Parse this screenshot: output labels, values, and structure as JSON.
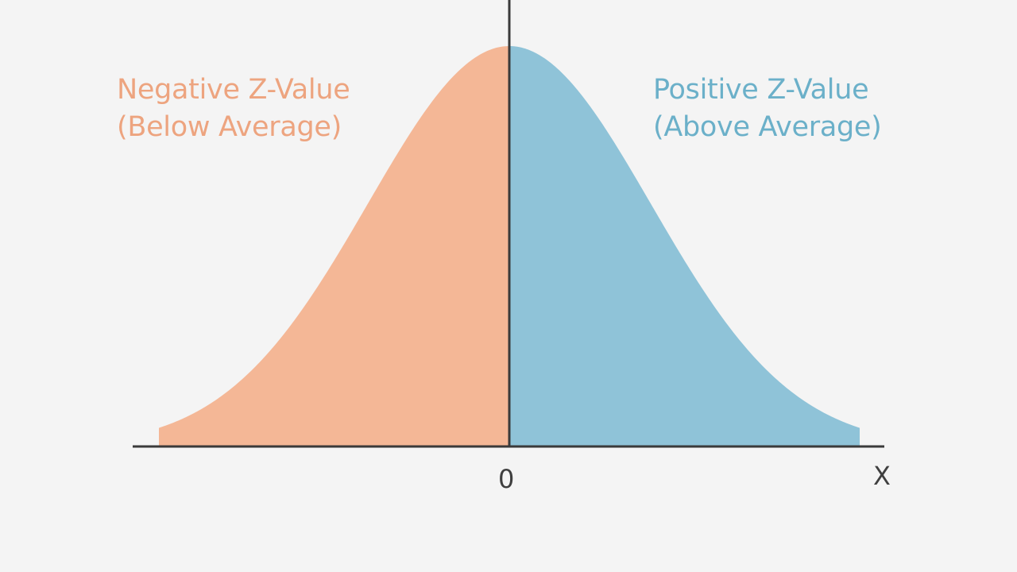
{
  "chart_data": {
    "type": "area",
    "title": "",
    "subtitle": "",
    "xlabel": "X",
    "ylabel": "",
    "x_ticks": [
      "0"
    ],
    "xlim": [
      -2.7,
      2.7
    ],
    "ylim": [
      0,
      1
    ],
    "grid": false,
    "legend": "none",
    "distribution": "standard normal (bell curve)",
    "mean": 0,
    "series": [
      {
        "name": "Negative Z-Value (Below Average)",
        "region": "z < 0",
        "color": "#f4b796",
        "label_color": "#eda47f",
        "x": [
          -2.4,
          -2.0,
          -1.5,
          -1.0,
          -0.5,
          0
        ],
        "y": [
          0.056,
          0.135,
          0.325,
          0.607,
          0.882,
          1.0
        ]
      },
      {
        "name": "Positive Z-Value (Above Average)",
        "region": "z > 0",
        "color": "#8fc3d8",
        "label_color": "#6bb0c9",
        "x": [
          0,
          0.5,
          1.0,
          1.5,
          2.0,
          2.4
        ],
        "y": [
          1.0,
          0.882,
          0.607,
          0.325,
          0.135,
          0.056
        ]
      }
    ],
    "annotations": [
      {
        "text": "Negative Z-Value",
        "line2": "(Below Average)",
        "side": "left"
      },
      {
        "text": "Positive Z-Value",
        "line2": "(Above Average)",
        "side": "right"
      }
    ]
  },
  "labels": {
    "negative_line1": "Negative Z-Value",
    "negative_line2": "(Below Average)",
    "positive_line1": "Positive Z-Value",
    "positive_line2": "(Above Average)"
  },
  "axis": {
    "zero_tick": "0",
    "x_label": "X",
    "color": "#3a3a3a"
  },
  "colors": {
    "background": "#f4f4f4",
    "negative_fill": "#f4b796",
    "positive_fill": "#8fc3d8",
    "negative_text": "#eda47f",
    "positive_text": "#6bb0c9",
    "axis": "#3a3a3a"
  }
}
